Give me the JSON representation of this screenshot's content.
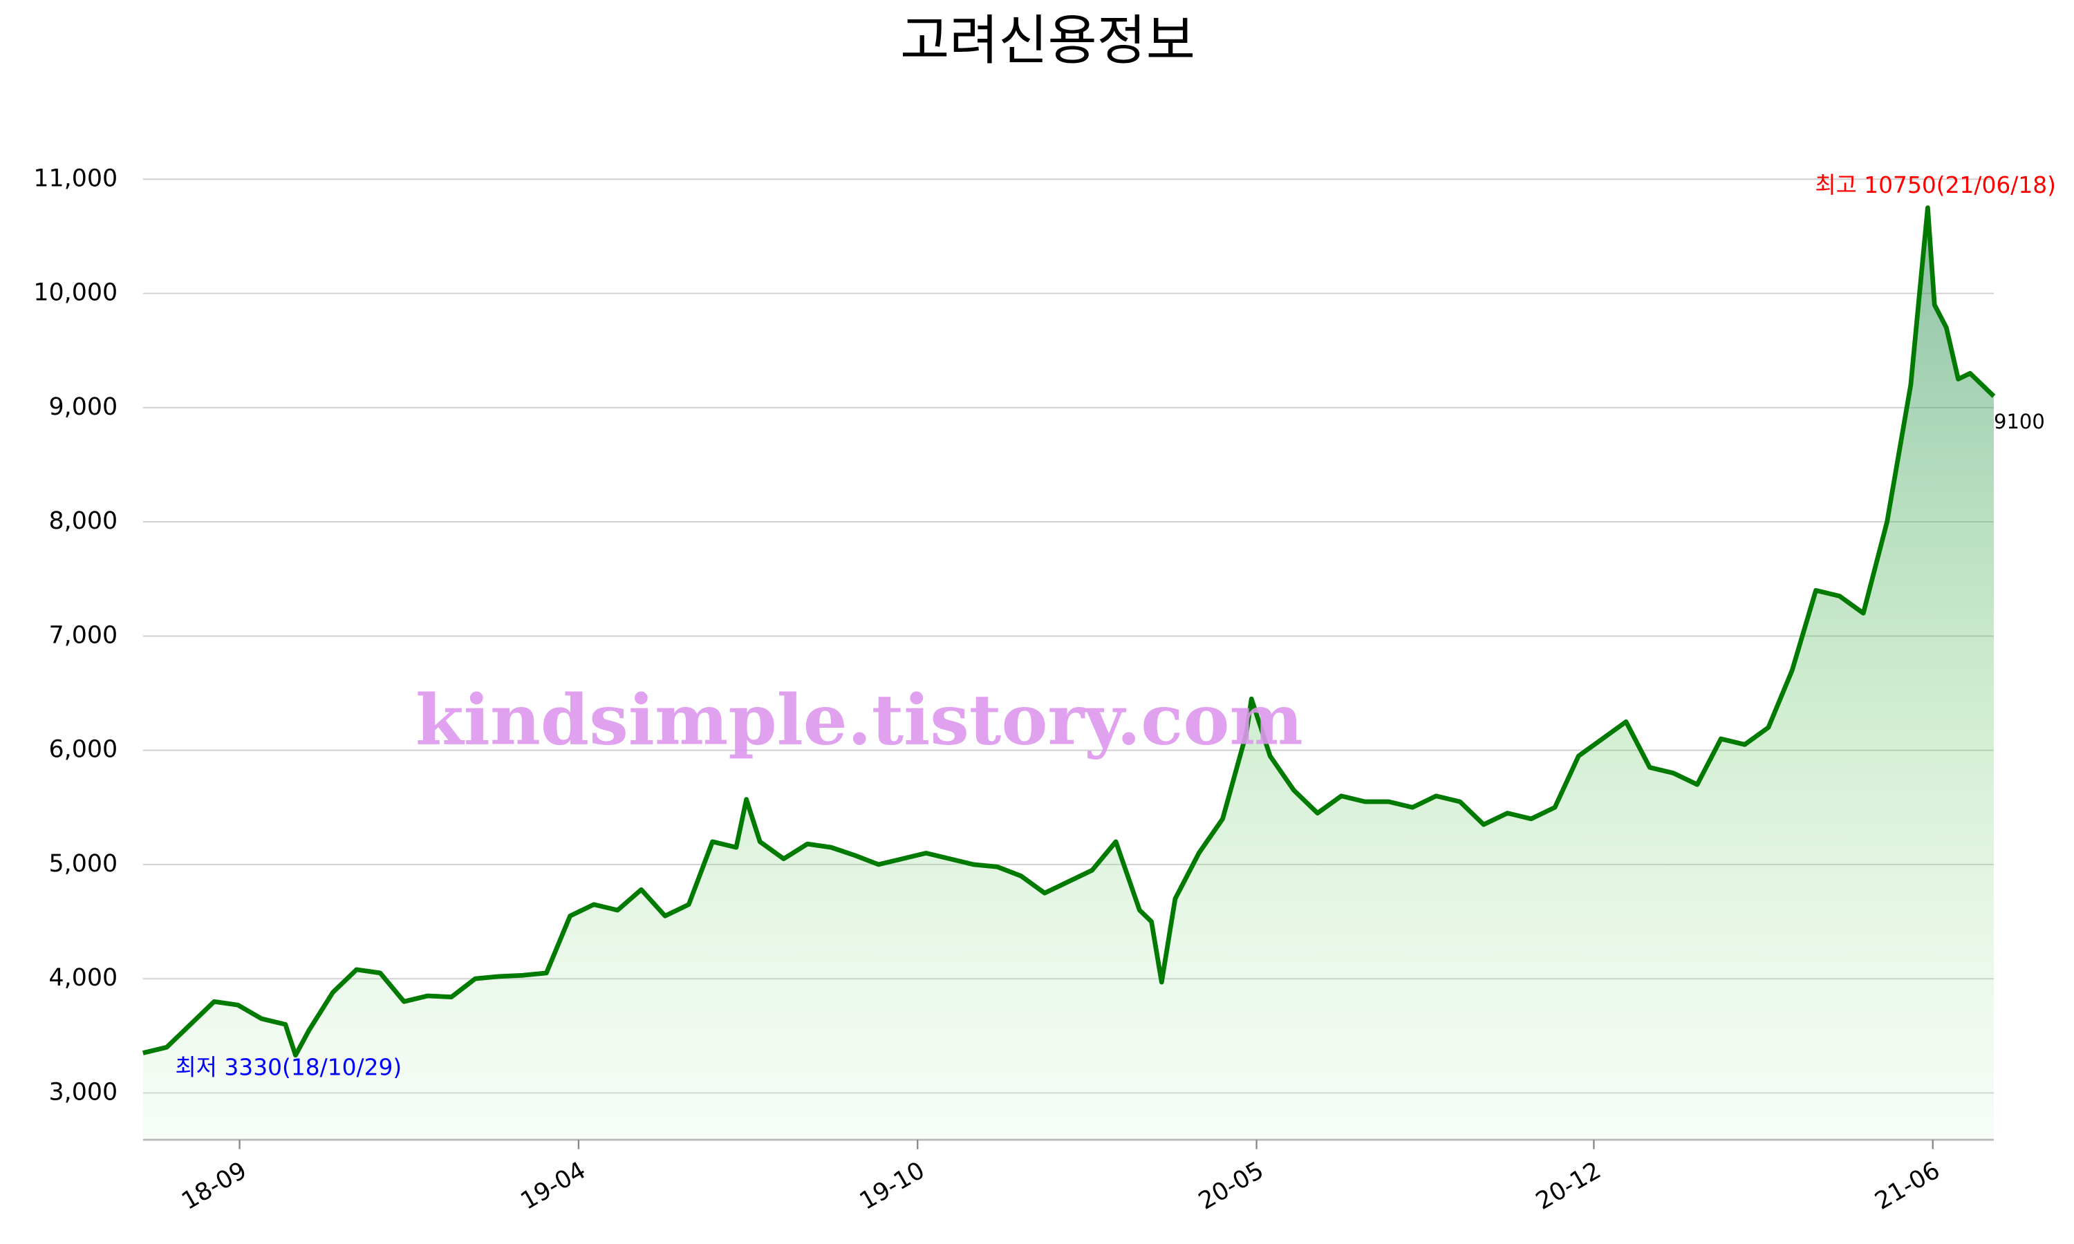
{
  "chart_data": {
    "type": "line",
    "title": "고려신용정보",
    "watermark": "kindsimple.tistory.com",
    "annotations": [
      {
        "text": "최고 10750(21/06/18)",
        "x": "21/06/18",
        "value": 10750,
        "color": "#ff0000"
      },
      {
        "text": "최저 3330(18/10/29)",
        "x": "18/10/29",
        "value": 3330,
        "color": "#0000ff"
      }
    ],
    "x": [
      "18/07/31",
      "18/08/14",
      "18/08/28",
      "18/09/11",
      "18/09/25",
      "18/10/09",
      "18/10/23",
      "18/10/29",
      "18/11/06",
      "18/11/20",
      "18/12/04",
      "18/12/18",
      "19/01/01",
      "19/01/15",
      "19/01/29",
      "19/02/12",
      "19/02/26",
      "19/03/12",
      "19/03/26",
      "19/04/09",
      "19/04/23",
      "19/05/07",
      "19/05/21",
      "19/06/04",
      "19/06/18",
      "19/07/02",
      "19/07/16",
      "19/07/22",
      "19/07/30",
      "19/08/13",
      "19/08/27",
      "19/09/10",
      "19/09/24",
      "19/10/08",
      "19/10/22",
      "19/11/05",
      "19/11/19",
      "19/12/03",
      "19/12/17",
      "19/12/31",
      "20/01/14",
      "20/01/28",
      "20/02/11",
      "20/02/25",
      "20/03/10",
      "20/03/17",
      "20/03/23",
      "20/03/31",
      "20/04/14",
      "20/04/28",
      "20/05/12",
      "20/05/15",
      "20/05/26",
      "20/06/09",
      "20/06/23",
      "20/07/07",
      "20/07/21",
      "20/08/04",
      "20/08/18",
      "20/09/01",
      "20/09/15",
      "20/09/29",
      "20/10/13",
      "20/10/27",
      "20/11/10",
      "20/11/24",
      "20/12/08",
      "20/12/22",
      "21/01/05",
      "21/01/19",
      "21/02/02",
      "21/02/16",
      "21/03/02",
      "21/03/16",
      "21/03/30",
      "21/04/13",
      "21/04/27",
      "21/05/11",
      "21/05/25",
      "21/06/01",
      "21/06/08",
      "21/06/18",
      "21/06/22",
      "21/06/29",
      "21/07/06",
      "21/07/13",
      "21/07/20",
      "21/07/27"
    ],
    "series": [
      {
        "name": "고려신용정보",
        "color": "#007a00",
        "values": [
          3350,
          3400,
          3600,
          3800,
          3770,
          3650,
          3600,
          3330,
          3550,
          3880,
          4080,
          4050,
          3800,
          3850,
          3840,
          4000,
          4020,
          4030,
          4050,
          4550,
          4650,
          4600,
          4780,
          4550,
          4650,
          5200,
          5150,
          5570,
          5200,
          5050,
          5180,
          5150,
          5080,
          5000,
          5050,
          5100,
          5050,
          5000,
          4980,
          4900,
          4750,
          4850,
          4950,
          5200,
          4600,
          4500,
          3970,
          4700,
          5100,
          5400,
          6150,
          6450,
          5950,
          5650,
          5450,
          5600,
          5550,
          5550,
          5500,
          5600,
          5550,
          5350,
          5450,
          5400,
          5500,
          5950,
          6100,
          6250,
          5850,
          5800,
          5700,
          6100,
          6050,
          6200,
          6700,
          7400,
          7350,
          7200,
          8000,
          8600,
          9200,
          10750,
          9900,
          9700,
          9250,
          9300,
          9200,
          9100
        ]
      }
    ],
    "xlim": [
      "18/07/31",
      "21/07/27"
    ],
    "xticks": [
      {
        "value": "18/09/26",
        "label": "18-09"
      },
      {
        "value": "19/04/14",
        "label": "19-04"
      },
      {
        "value": "19/10/31",
        "label": "19-10"
      },
      {
        "value": "20/05/18",
        "label": "20-05"
      },
      {
        "value": "20/12/03",
        "label": "20-12"
      },
      {
        "value": "21/06/21",
        "label": "21-06"
      }
    ],
    "ylim": [
      2590,
      11200
    ],
    "yticks": [
      {
        "value": 3000,
        "label": "3,000"
      },
      {
        "value": 4000,
        "label": "4,000"
      },
      {
        "value": 5000,
        "label": "5,000"
      },
      {
        "value": 6000,
        "label": "6,000"
      },
      {
        "value": 7000,
        "label": "7,000"
      },
      {
        "value": 8000,
        "label": "8,000"
      },
      {
        "value": 9000,
        "label": "9,000"
      },
      {
        "value": 10000,
        "label": "10,000"
      },
      {
        "value": 11000,
        "label": "11,000"
      }
    ],
    "grid": true,
    "area_fill": true
  }
}
